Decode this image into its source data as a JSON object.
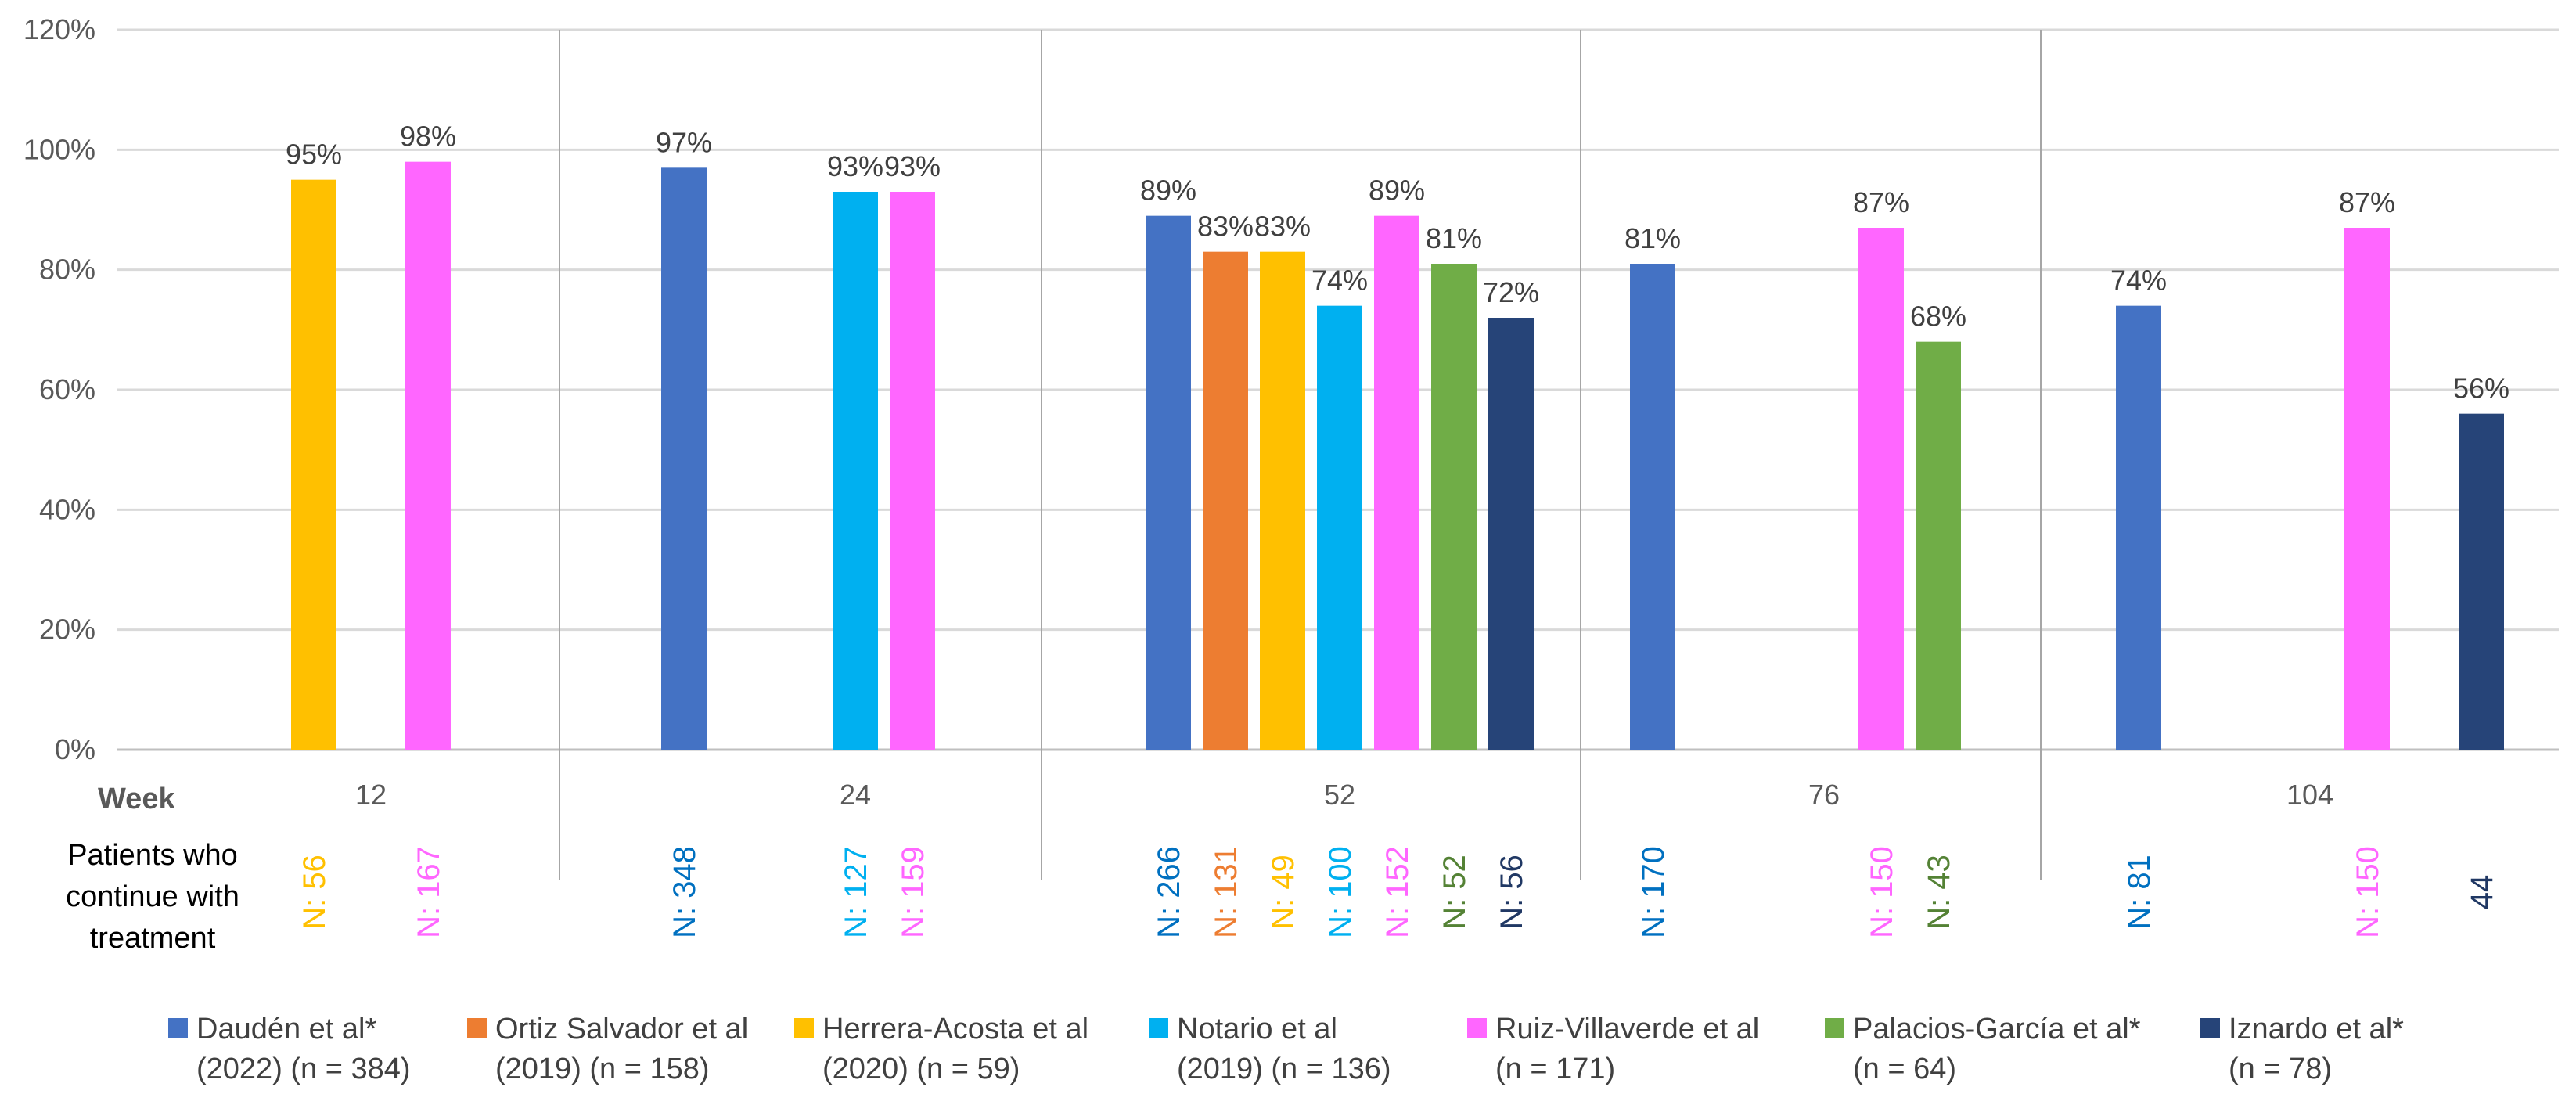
{
  "chart_data": {
    "type": "bar",
    "title": "",
    "xlabel": "Week",
    "ylabel": "",
    "ylim": [
      0,
      120
    ],
    "y_ticks": [
      "0%",
      "20%",
      "40%",
      "60%",
      "80%",
      "100%",
      "120%"
    ],
    "categories": [
      "12",
      "24",
      "52",
      "76",
      "104"
    ],
    "row_title": [
      "Patients who",
      "continue with",
      "treatment"
    ],
    "series": [
      {
        "name": "Daudén et al*",
        "name2": "(2022) (n = 384)",
        "color": "#4472C4",
        "ncolor": "#0070C0",
        "values": [
          null,
          97,
          89,
          81,
          74
        ],
        "labels": [
          null,
          "97%",
          "89%",
          "81%",
          "74%"
        ],
        "n": [
          null,
          "N: 348",
          "N: 266",
          "N: 170",
          "N: 81"
        ]
      },
      {
        "name": "Ortiz Salvador et al",
        "name2": "(2019) (n = 158)",
        "color": "#ED7D31",
        "ncolor": "#ED7D31",
        "values": [
          null,
          null,
          83,
          null,
          null
        ],
        "labels": [
          null,
          null,
          "83%",
          null,
          null
        ],
        "n": [
          null,
          null,
          "N: 131",
          null,
          null
        ]
      },
      {
        "name": "Herrera-Acosta et al",
        "name2": "(2020) (n = 59)",
        "color": "#FFC000",
        "ncolor": "#FFC000",
        "values": [
          95,
          null,
          83,
          null,
          null
        ],
        "labels": [
          "95%",
          null,
          "83%",
          null,
          null
        ],
        "n": [
          "N: 56",
          null,
          "N: 49",
          null,
          null
        ]
      },
      {
        "name": "Notario et al",
        "name2": "(2019) (n = 136)",
        "color": "#00B0F0",
        "ncolor": "#00B0F0",
        "values": [
          null,
          93,
          74,
          null,
          null
        ],
        "labels": [
          null,
          "93%",
          "74%",
          null,
          null
        ],
        "n": [
          null,
          "N: 127",
          "N: 100",
          null,
          null
        ]
      },
      {
        "name": "Ruiz-Villaverde et al",
        "name2": "(n = 171)",
        "color": "#FF66FF",
        "ncolor": "#FF66FF",
        "values": [
          98,
          93,
          89,
          87,
          87
        ],
        "labels": [
          "98%",
          "93%",
          "89%",
          "87%",
          "87%"
        ],
        "n": [
          "N: 167",
          "N: 159",
          "N: 152",
          "N: 150",
          "N: 150"
        ]
      },
      {
        "name": "Palacios-García et al*",
        "name2": "(n = 64)",
        "color": "#70AD47",
        "ncolor": "#548235",
        "values": [
          null,
          null,
          81,
          68,
          null
        ],
        "labels": [
          null,
          null,
          "81%",
          "68%",
          null
        ],
        "n": [
          null,
          null,
          "N: 52",
          "N: 43",
          null
        ]
      },
      {
        "name": "Iznardo et al*",
        "name2": "(n = 78)",
        "color": "#264478",
        "ncolor": "#203864",
        "values": [
          null,
          null,
          72,
          null,
          56
        ],
        "labels": [
          null,
          null,
          "72%",
          null,
          "56%"
        ],
        "n": [
          null,
          null,
          "N: 56",
          null,
          "44"
        ]
      }
    ]
  }
}
